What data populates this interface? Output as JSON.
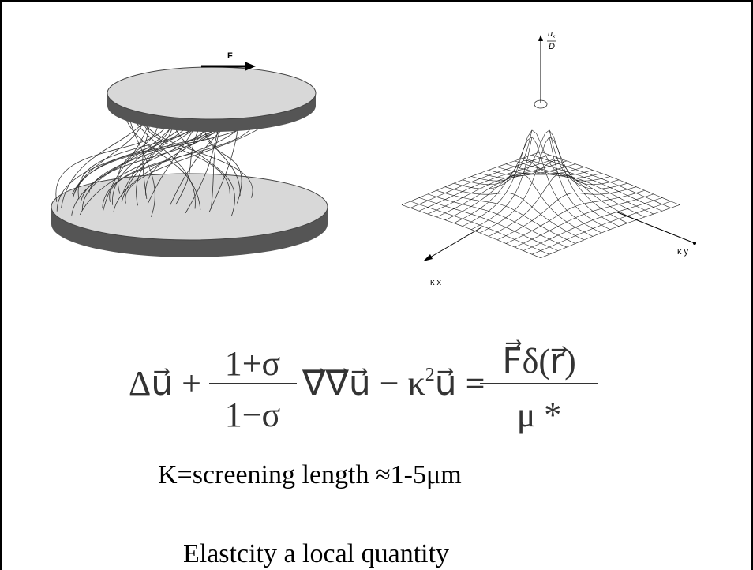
{
  "figure": {
    "force_label": "F",
    "vertical_axis_top": "u",
    "vertical_axis_sub": "x",
    "vertical_axis_bottom": "D",
    "ky_label": "κ y",
    "kx_label": "κ x"
  },
  "equation": {
    "left": "Δu⃗ +",
    "frac1_num": "1+σ",
    "frac1_den": "1−σ",
    "middle": "∇⃗∇⃗u⃗ − κ",
    "exponent": "2",
    "middle_end": "u⃗ =",
    "frac2_num": "F⃗δ(r⃗)",
    "frac2_den": "μ *"
  },
  "lines": [
    "K=screening length ≈1-5μm",
    "Elastcity a local quantity"
  ]
}
